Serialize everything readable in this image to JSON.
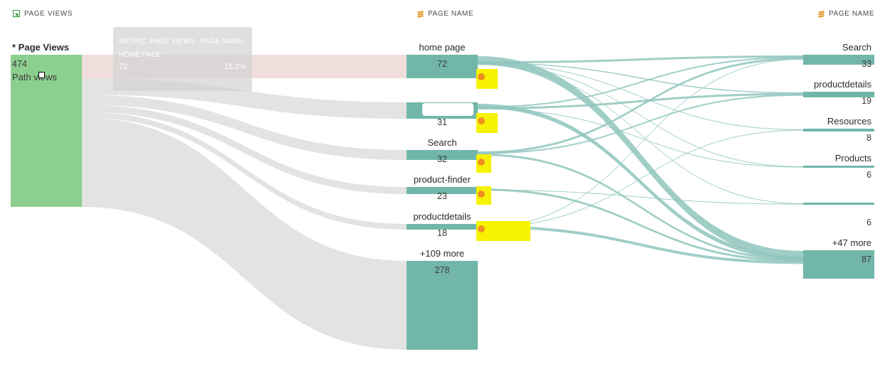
{
  "headers": {
    "left": "PAGE VIEWS",
    "middle": "PAGE NAME",
    "right": "PAGE NAME"
  },
  "colors": {
    "entry_node": "#8ccf8f",
    "page_node": "#72b6aa",
    "entry_flow": "#e3e3e3",
    "page_flow": "#8fc6bd",
    "highlight": "#f7f200",
    "highlight_dot": "#f09020",
    "header_icon": "#e39a27"
  },
  "tooltip": {
    "title": "METRIC: PAGE VIEWS - PAGE NAME: HOME PAGE",
    "value": "72",
    "percent": "15.2%"
  },
  "chart_data": {
    "type": "flow",
    "entry": {
      "label": "* Page Views",
      "value": "474",
      "unit": "Path views"
    },
    "step1": [
      {
        "label": "home page",
        "value": 72
      },
      {
        "label": "",
        "value": 31
      },
      {
        "label": "Search",
        "value": 32
      },
      {
        "label": "product-finder",
        "value": 23
      },
      {
        "label": "productdetails",
        "value": 18
      },
      {
        "label": "+109 more",
        "value": 278
      }
    ],
    "step2": [
      {
        "label": "Search",
        "value": 33
      },
      {
        "label": "productdetails",
        "value": 19
      },
      {
        "label": "Resources",
        "value": 8
      },
      {
        "label": "Products",
        "value": 6
      },
      {
        "label": "",
        "value": 6
      },
      {
        "label": "+47 more",
        "value": 87
      }
    ]
  }
}
